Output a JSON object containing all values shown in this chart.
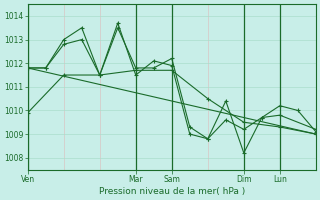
{
  "xlabel": "Pression niveau de la mer( hPa )",
  "background_color": "#c8eee8",
  "grid_color_major": "#aaddcc",
  "grid_color_minor": "#ddbbbb",
  "line_color": "#1a6b2a",
  "ylim": [
    1007.5,
    1014.5
  ],
  "yticks": [
    1008,
    1009,
    1010,
    1011,
    1012,
    1013,
    1014
  ],
  "xlim_hours": [
    0,
    192
  ],
  "day_labels": [
    "Ven",
    "Mar",
    "Sam",
    "Dim",
    "Lun"
  ],
  "day_positions_hours": [
    0,
    72,
    96,
    144,
    168
  ],
  "vline_positions_hours": [
    0,
    72,
    96,
    144,
    168
  ],
  "minor_xtick_interval": 24,
  "series": [
    {
      "x": [
        0,
        24,
        48,
        72,
        96,
        120,
        144,
        168,
        192
      ],
      "y": [
        1009.9,
        1011.5,
        1011.5,
        1011.7,
        1011.7,
        1010.5,
        1009.5,
        1009.3,
        1009.0
      ]
    },
    {
      "x": [
        0,
        12,
        24,
        36,
        48,
        60,
        72,
        84,
        96,
        108,
        120,
        132,
        144,
        156,
        168,
        180,
        192
      ],
      "y": [
        1011.8,
        1011.8,
        1012.8,
        1013.0,
        1011.5,
        1013.7,
        1011.5,
        1012.1,
        1011.9,
        1009.0,
        1008.8,
        1010.4,
        1008.2,
        1009.7,
        1010.2,
        1010.0,
        1009.1
      ]
    },
    {
      "x": [
        0,
        12,
        24,
        36,
        48,
        60,
        72,
        84,
        96,
        108,
        120,
        132,
        144,
        156,
        168,
        192
      ],
      "y": [
        1011.8,
        1011.8,
        1013.0,
        1013.5,
        1011.5,
        1013.5,
        1011.8,
        1011.8,
        1012.2,
        1009.3,
        1008.8,
        1009.6,
        1009.2,
        1009.7,
        1009.8,
        1009.2
      ]
    }
  ],
  "straight_line": {
    "x": [
      0,
      192
    ],
    "y": [
      1011.8,
      1009.0
    ]
  }
}
